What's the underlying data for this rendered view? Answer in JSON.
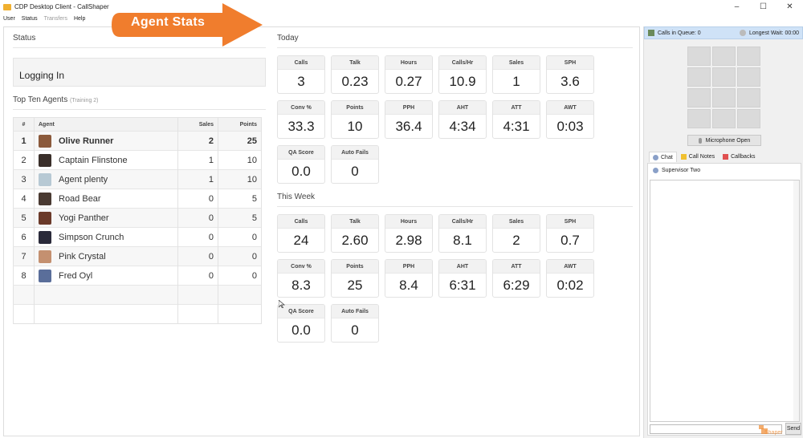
{
  "window": {
    "title": "CDP Desktop Client - CallShaper",
    "controls": [
      "–",
      "☐",
      "✕"
    ]
  },
  "menu": [
    {
      "label": "User",
      "enabled": true
    },
    {
      "label": "Status",
      "enabled": true
    },
    {
      "label": "Transfers",
      "enabled": false
    },
    {
      "label": "Help",
      "enabled": true
    }
  ],
  "overlay": {
    "label": "Agent Stats",
    "color": "#f07d2d"
  },
  "status": {
    "title": "Status",
    "value": "Logging In"
  },
  "top_ten": {
    "title": "Top Ten Agents",
    "subtitle": "(Training 2)",
    "columns": [
      "#",
      "Agent",
      "Sales",
      "Points"
    ],
    "rows": [
      {
        "rank": "1",
        "name": "Olive Runner",
        "sales": "2",
        "points": "25",
        "avatar": "#8b5a3c"
      },
      {
        "rank": "2",
        "name": "Captain Flinstone",
        "sales": "1",
        "points": "10",
        "avatar": "#3a2f2a"
      },
      {
        "rank": "3",
        "name": "Agent plenty",
        "sales": "1",
        "points": "10",
        "avatar": "#b7c9d4"
      },
      {
        "rank": "4",
        "name": "Road Bear",
        "sales": "0",
        "points": "5",
        "avatar": "#4a3a32"
      },
      {
        "rank": "5",
        "name": "Yogi Panther",
        "sales": "0",
        "points": "5",
        "avatar": "#6b3a2a"
      },
      {
        "rank": "6",
        "name": "Simpson Crunch",
        "sales": "0",
        "points": "0",
        "avatar": "#2a2a3a"
      },
      {
        "rank": "7",
        "name": "Pink Crystal",
        "sales": "0",
        "points": "0",
        "avatar": "#c49070"
      },
      {
        "rank": "8",
        "name": "Fred Oyl",
        "sales": "0",
        "points": "0",
        "avatar": "#5a6e9a"
      },
      {
        "rank": "",
        "name": "",
        "sales": "",
        "points": "",
        "avatar": ""
      },
      {
        "rank": "",
        "name": "",
        "sales": "",
        "points": "",
        "avatar": ""
      }
    ]
  },
  "today": {
    "title": "Today",
    "stats": [
      {
        "label": "Calls",
        "value": "3"
      },
      {
        "label": "Talk",
        "value": "0.23"
      },
      {
        "label": "Hours",
        "value": "0.27"
      },
      {
        "label": "Calls/Hr",
        "value": "10.9"
      },
      {
        "label": "Sales",
        "value": "1"
      },
      {
        "label": "SPH",
        "value": "3.6"
      },
      {
        "label": "Conv %",
        "value": "33.3"
      },
      {
        "label": "Points",
        "value": "10"
      },
      {
        "label": "PPH",
        "value": "36.4"
      },
      {
        "label": "AHT",
        "value": "4:34"
      },
      {
        "label": "ATT",
        "value": "4:31"
      },
      {
        "label": "AWT",
        "value": "0:03"
      },
      {
        "label": "QA Score",
        "value": "0.0"
      },
      {
        "label": "Auto Fails",
        "value": "0"
      }
    ]
  },
  "this_week": {
    "title": "This Week",
    "stats": [
      {
        "label": "Calls",
        "value": "24"
      },
      {
        "label": "Talk",
        "value": "2.60"
      },
      {
        "label": "Hours",
        "value": "2.98"
      },
      {
        "label": "Calls/Hr",
        "value": "8.1"
      },
      {
        "label": "Sales",
        "value": "2"
      },
      {
        "label": "SPH",
        "value": "0.7"
      },
      {
        "label": "Conv %",
        "value": "8.3"
      },
      {
        "label": "Points",
        "value": "25"
      },
      {
        "label": "PPH",
        "value": "8.4"
      },
      {
        "label": "AHT",
        "value": "6:31"
      },
      {
        "label": "ATT",
        "value": "6:29"
      },
      {
        "label": "AWT",
        "value": "0:02"
      },
      {
        "label": "QA Score",
        "value": "0.0"
      },
      {
        "label": "Auto Fails",
        "value": "0"
      }
    ]
  },
  "sidebar": {
    "queue_label": "Calls in Queue: 0",
    "wait_label": "Longest Wait: 00:00",
    "mic_label": "Microphone Open",
    "tabs": [
      {
        "label": "Chat",
        "icon": "user-icon",
        "active": true
      },
      {
        "label": "Call Notes",
        "icon": "notes-icon",
        "active": false
      },
      {
        "label": "Callbacks",
        "icon": "calendar-icon",
        "active": false
      }
    ],
    "chat_contact": "Supervisor Two",
    "chat_input_value": "",
    "send_label": "Send",
    "watermark": "Shaper"
  }
}
